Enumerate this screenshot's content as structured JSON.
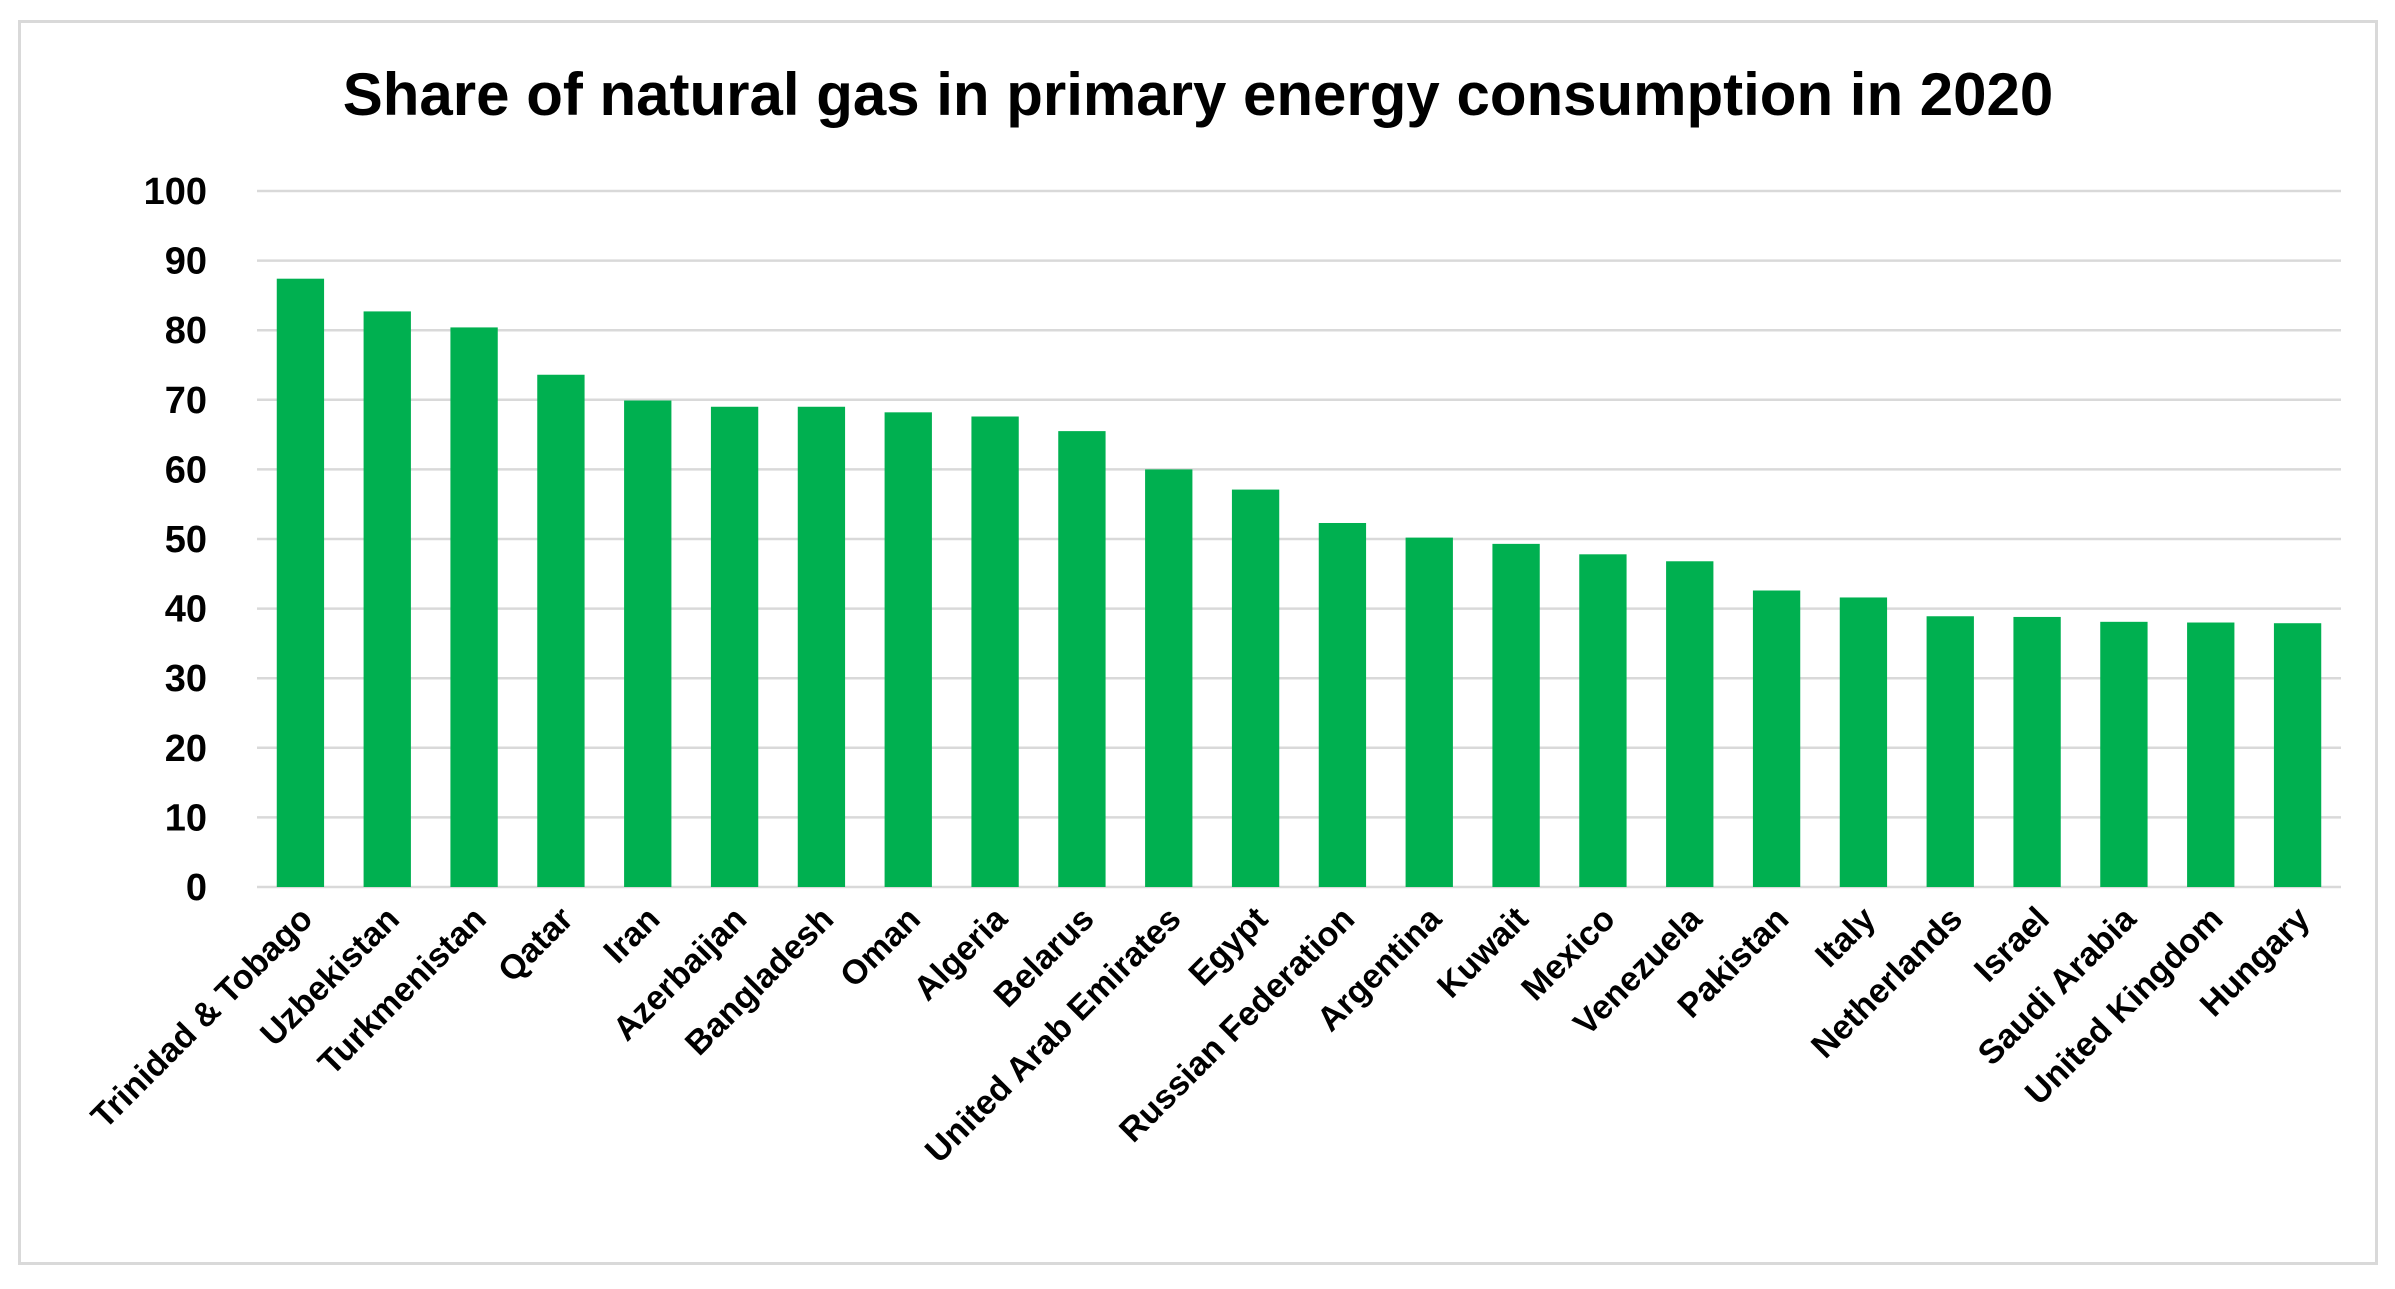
{
  "chart_data": {
    "type": "bar",
    "title": "Share of natural gas in primary energy consumption in 2020",
    "xlabel": "",
    "ylabel": "",
    "ylim": [
      0,
      100
    ],
    "yticks": [
      0,
      10,
      20,
      30,
      40,
      50,
      60,
      70,
      80,
      90,
      100
    ],
    "grid": true,
    "bar_color": "#00b050",
    "grid_color": "#d9d9d9",
    "categories": [
      "Trinidad & Tobago",
      "Uzbekistan",
      "Turkmenistan",
      "Qatar",
      "Iran",
      "Azerbaijan",
      "Bangladesh",
      "Oman",
      "Algeria",
      "Belarus",
      "United Arab Emirates",
      "Egypt",
      "Russian Federation",
      "Argentina",
      "Kuwait",
      "Mexico",
      "Venezuela",
      "Pakistan",
      "Italy",
      "Netherlands",
      "Israel",
      "Saudi Arabia",
      "United Kingdom",
      "Hungary"
    ],
    "values": [
      87.4,
      82.7,
      80.4,
      73.6,
      69.9,
      69.0,
      69.0,
      68.2,
      67.6,
      65.5,
      60.0,
      57.1,
      52.3,
      50.2,
      49.3,
      47.8,
      46.8,
      42.6,
      41.6,
      38.9,
      38.8,
      38.1,
      38.0,
      37.9
    ]
  }
}
